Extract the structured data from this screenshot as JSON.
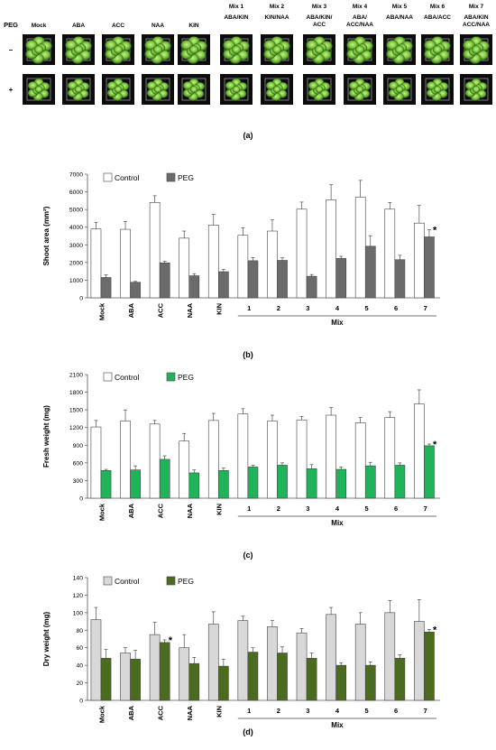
{
  "photo_panel": {
    "row_header": "PEG",
    "row_labels": [
      "–",
      "+"
    ],
    "columns": [
      {
        "top": "",
        "bottom": "Mock"
      },
      {
        "top": "",
        "bottom": "ABA"
      },
      {
        "top": "",
        "bottom": "ACC"
      },
      {
        "top": "",
        "bottom": "NAA"
      },
      {
        "top": "",
        "bottom": "KIN"
      },
      {
        "top": "Mix 1",
        "bottom": "ABA/KIN"
      },
      {
        "top": "Mix 2",
        "bottom": "KIN/NAA"
      },
      {
        "top": "Mix 3",
        "bottom": "ABA/KIN/\nACC"
      },
      {
        "top": "Mix 4",
        "bottom": "ABA/\nACC/NAA"
      },
      {
        "top": "Mix 5",
        "bottom": "ABA/NAA"
      },
      {
        "top": "Mix 6",
        "bottom": "ABA/ACC"
      },
      {
        "top": "Mix 7",
        "bottom": "ABA/KIN\nACC/NAA"
      }
    ],
    "panel_label": "(a)"
  },
  "chart_data": [
    {
      "type": "bar",
      "panel_label": "(b)",
      "ylabel": "Shoot area (mm²)",
      "ylim": [
        0,
        7000
      ],
      "yticks": [
        0,
        1000,
        2000,
        3000,
        4000,
        5000,
        6000,
        7000
      ],
      "categories": [
        "Mock",
        "ABA",
        "ACC",
        "NAA",
        "KIN",
        "1",
        "2",
        "3",
        "4",
        "5",
        "6",
        "7"
      ],
      "group_label": "Mix",
      "legend_position": "top-left",
      "series": [
        {
          "name": "Control",
          "color": "#ffffff",
          "values": [
            3900,
            3880,
            5400,
            3380,
            4120,
            3540,
            3780,
            5020,
            5550,
            5700,
            5020,
            4230
          ],
          "errors": [
            380,
            440,
            380,
            400,
            600,
            420,
            640,
            400,
            850,
            950,
            380,
            1000
          ]
        },
        {
          "name": "PEG",
          "color": "#6b6b6b",
          "values": [
            1150,
            880,
            1980,
            1250,
            1480,
            2100,
            2120,
            1220,
            2230,
            2920,
            2160,
            3450
          ],
          "errors": [
            150,
            50,
            80,
            120,
            120,
            180,
            150,
            100,
            120,
            600,
            250,
            400
          ]
        }
      ],
      "annotations": [
        {
          "category": "7",
          "text": "*"
        }
      ]
    },
    {
      "type": "bar",
      "panel_label": "(c)",
      "ylabel": "Fresh weight (mg)",
      "ylim": [
        0,
        2100
      ],
      "yticks": [
        0,
        300,
        600,
        900,
        1200,
        1500,
        1800,
        2100
      ],
      "categories": [
        "Mock",
        "ABA",
        "ACC",
        "NAA",
        "KIN",
        "1",
        "2",
        "3",
        "4",
        "5",
        "6",
        "7"
      ],
      "group_label": "Mix",
      "legend_position": "top-left",
      "series": [
        {
          "name": "Control",
          "color": "#ffffff",
          "values": [
            1210,
            1310,
            1260,
            970,
            1320,
            1430,
            1310,
            1330,
            1410,
            1280,
            1370,
            1600
          ],
          "errors": [
            110,
            190,
            60,
            130,
            120,
            90,
            100,
            60,
            130,
            90,
            100,
            240
          ]
        },
        {
          "name": "PEG",
          "color": "#1fb35a",
          "values": [
            470,
            480,
            660,
            430,
            470,
            530,
            560,
            500,
            490,
            550,
            560,
            890
          ],
          "errors": [
            20,
            70,
            60,
            50,
            40,
            30,
            40,
            70,
            40,
            60,
            40,
            30
          ]
        }
      ],
      "annotations": [
        {
          "category": "7",
          "text": "*"
        }
      ]
    },
    {
      "type": "bar",
      "panel_label": "(d)",
      "ylabel": "Dry weight (mg)",
      "ylim": [
        0,
        140
      ],
      "yticks": [
        0,
        20,
        40,
        60,
        80,
        100,
        120,
        140
      ],
      "categories": [
        "Mock",
        "ABA",
        "ACC",
        "NAA",
        "KIN",
        "1",
        "2",
        "3",
        "4",
        "5",
        "6",
        "7"
      ],
      "group_label": "Mix",
      "legend_position": "top-left",
      "series": [
        {
          "name": "Control",
          "color": "#d8d8d8",
          "values": [
            92,
            54,
            75,
            60,
            87,
            91,
            84,
            77,
            98,
            87,
            100,
            90
          ],
          "errors": [
            14,
            6,
            14,
            15,
            14,
            5,
            7,
            5,
            8,
            13,
            14,
            25
          ]
        },
        {
          "name": "PEG",
          "color": "#4b6b1f",
          "values": [
            48,
            47,
            66,
            42,
            39,
            55,
            54,
            48,
            40,
            40,
            48,
            78
          ],
          "errors": [
            10,
            10,
            3,
            7,
            8,
            5,
            7,
            6,
            3,
            4,
            4,
            3
          ]
        }
      ],
      "annotations": [
        {
          "category": "ACC",
          "text": "*"
        },
        {
          "category": "7",
          "text": "*"
        }
      ]
    }
  ]
}
